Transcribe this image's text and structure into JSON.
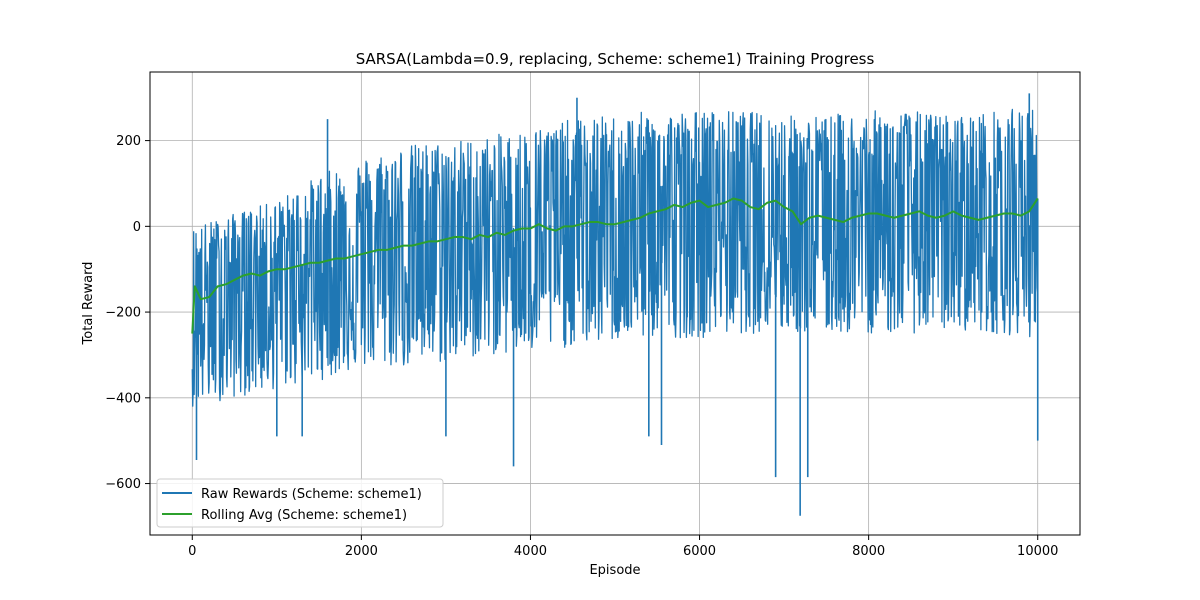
{
  "chart_data": {
    "type": "line",
    "title": "SARSA(Lambda=0.9, replacing, Scheme: scheme1) Training Progress",
    "xlabel": "Episode",
    "ylabel": "Total Reward",
    "xlim": [
      -500,
      10500
    ],
    "ylim": [
      -720,
      360
    ],
    "xticks": [
      0,
      2000,
      4000,
      6000,
      8000,
      10000
    ],
    "yticks": [
      -600,
      -400,
      -200,
      0,
      200
    ],
    "grid": true,
    "legend_position": "lower-left",
    "episodes": 10000,
    "series": [
      {
        "name": "Raw Rewards (Scheme: scheme1)",
        "color": "#1f77b4",
        "kind": "envelope",
        "x": [
          0,
          500,
          1000,
          1500,
          2000,
          2500,
          3000,
          3500,
          4000,
          4500,
          5000,
          5500,
          6000,
          6500,
          7000,
          7500,
          8000,
          8500,
          9000,
          9500,
          10000
        ],
        "upper": [
          0,
          30,
          60,
          120,
          160,
          190,
          200,
          210,
          230,
          250,
          260,
          270,
          270,
          270,
          260,
          260,
          270,
          270,
          260,
          270,
          280
        ],
        "lower": [
          -420,
          -400,
          -380,
          -360,
          -330,
          -330,
          -320,
          -300,
          -300,
          -280,
          -270,
          -260,
          -260,
          -250,
          -250,
          -250,
          -250,
          -250,
          -240,
          -250,
          -260
        ],
        "spikes": [
          {
            "x": 50,
            "y": -545
          },
          {
            "x": 1000,
            "y": -490
          },
          {
            "x": 1300,
            "y": -490
          },
          {
            "x": 1600,
            "y": 250
          },
          {
            "x": 3000,
            "y": -490
          },
          {
            "x": 3800,
            "y": -560
          },
          {
            "x": 4550,
            "y": 300
          },
          {
            "x": 5400,
            "y": -490
          },
          {
            "x": 5550,
            "y": -510
          },
          {
            "x": 6900,
            "y": -585
          },
          {
            "x": 7190,
            "y": -675
          },
          {
            "x": 7280,
            "y": -585
          },
          {
            "x": 9900,
            "y": 310
          },
          {
            "x": 10000,
            "y": -500
          }
        ]
      },
      {
        "name": "Rolling Avg (Scheme: scheme1)",
        "color": "#2ca02c",
        "x": [
          0,
          30,
          100,
          200,
          300,
          400,
          500,
          600,
          700,
          800,
          900,
          1000,
          1100,
          1200,
          1300,
          1400,
          1500,
          1600,
          1700,
          1800,
          1900,
          2000,
          2100,
          2200,
          2300,
          2400,
          2500,
          2600,
          2700,
          2800,
          2900,
          3000,
          3100,
          3200,
          3300,
          3400,
          3500,
          3600,
          3700,
          3800,
          3900,
          4000,
          4100,
          4200,
          4300,
          4400,
          4500,
          4600,
          4700,
          4800,
          4900,
          5000,
          5100,
          5200,
          5300,
          5400,
          5500,
          5600,
          5700,
          5800,
          5900,
          6000,
          6100,
          6200,
          6300,
          6400,
          6500,
          6600,
          6700,
          6800,
          6900,
          7000,
          7100,
          7200,
          7300,
          7400,
          7500,
          7600,
          7700,
          7800,
          7900,
          8000,
          8100,
          8200,
          8300,
          8400,
          8500,
          8600,
          8700,
          8800,
          8900,
          9000,
          9100,
          9200,
          9300,
          9400,
          9500,
          9600,
          9700,
          9800,
          9900,
          10000
        ],
        "values": [
          -250,
          -140,
          -170,
          -165,
          -140,
          -135,
          -125,
          -115,
          -110,
          -115,
          -105,
          -100,
          -100,
          -95,
          -90,
          -85,
          -85,
          -80,
          -75,
          -75,
          -70,
          -65,
          -60,
          -55,
          -55,
          -50,
          -45,
          -45,
          -40,
          -35,
          -35,
          -30,
          -25,
          -25,
          -30,
          -20,
          -25,
          -15,
          -20,
          -10,
          -5,
          -5,
          5,
          -5,
          -10,
          0,
          0,
          5,
          10,
          10,
          5,
          5,
          10,
          15,
          20,
          30,
          35,
          40,
          50,
          45,
          55,
          60,
          45,
          50,
          55,
          65,
          60,
          45,
          40,
          55,
          60,
          45,
          35,
          5,
          20,
          25,
          20,
          15,
          10,
          20,
          25,
          30,
          30,
          25,
          20,
          25,
          30,
          35,
          25,
          20,
          25,
          35,
          25,
          20,
          15,
          20,
          25,
          30,
          30,
          25,
          35,
          65
        ]
      }
    ]
  }
}
